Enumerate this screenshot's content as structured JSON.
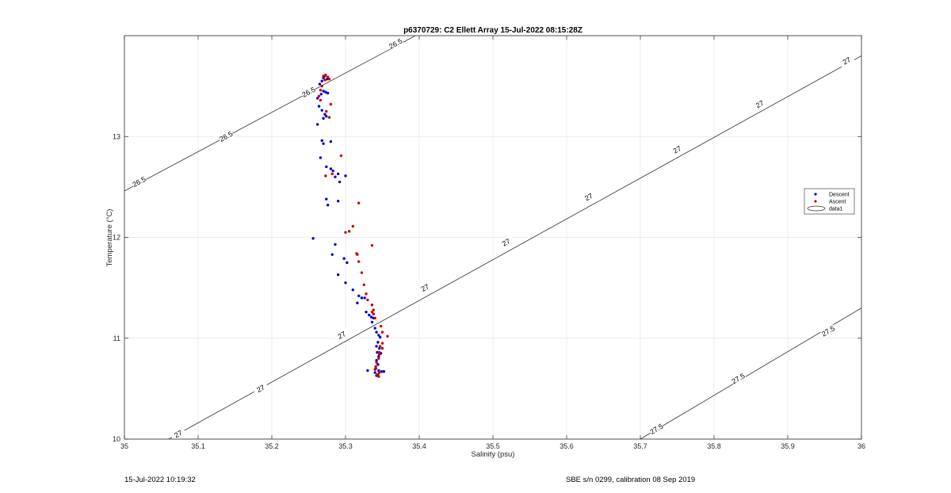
{
  "chart_data": {
    "type": "scatter",
    "title": "p6370729: C2 Ellett Array 15-Jul-2022 08:15:28Z",
    "xlabel": "Salinity (psu)",
    "ylabel": "Temperature (°C)",
    "xlim": [
      35,
      36
    ],
    "ylim": [
      10,
      14
    ],
    "x_ticks": [
      "35",
      "35.1",
      "35.2",
      "35.3",
      "35.4",
      "35.5",
      "35.6",
      "35.7",
      "35.8",
      "35.9",
      "36"
    ],
    "y_ticks": [
      "10",
      "11",
      "12",
      "13"
    ],
    "grid": true,
    "legend_position": "right",
    "legend": [
      "Descent",
      "Ascent",
      "data1"
    ],
    "series": [
      {
        "name": "Descent",
        "color": "#0000cc",
        "points": [
          [
            35.27,
            13.58
          ],
          [
            35.272,
            13.6
          ],
          [
            35.268,
            13.55
          ],
          [
            35.275,
            13.57
          ],
          [
            35.265,
            13.52
          ],
          [
            35.27,
            13.45
          ],
          [
            35.273,
            13.44
          ],
          [
            35.267,
            13.42
          ],
          [
            35.276,
            13.43
          ],
          [
            35.262,
            13.38
          ],
          [
            35.264,
            13.3
          ],
          [
            35.268,
            13.26
          ],
          [
            35.272,
            13.22
          ],
          [
            35.274,
            13.2
          ],
          [
            35.27,
            13.18
          ],
          [
            35.262,
            13.12
          ],
          [
            35.268,
            12.96
          ],
          [
            35.27,
            12.93
          ],
          [
            35.28,
            12.95
          ],
          [
            35.266,
            12.79
          ],
          [
            35.274,
            12.7
          ],
          [
            35.28,
            12.68
          ],
          [
            35.283,
            12.66
          ],
          [
            35.286,
            12.6
          ],
          [
            35.29,
            12.63
          ],
          [
            35.292,
            12.55
          ],
          [
            35.3,
            12.61
          ],
          [
            35.274,
            12.38
          ],
          [
            35.276,
            12.32
          ],
          [
            35.29,
            12.36
          ],
          [
            35.256,
            11.99
          ],
          [
            35.286,
            11.93
          ],
          [
            35.282,
            11.83
          ],
          [
            35.298,
            11.79
          ],
          [
            35.302,
            11.75
          ],
          [
            35.29,
            11.63
          ],
          [
            35.3,
            11.55
          ],
          [
            35.31,
            11.48
          ],
          [
            35.318,
            11.42
          ],
          [
            35.322,
            11.4
          ],
          [
            35.326,
            11.4
          ],
          [
            35.316,
            11.35
          ],
          [
            35.328,
            11.26
          ],
          [
            35.332,
            11.23
          ],
          [
            35.335,
            11.21
          ],
          [
            35.338,
            11.2
          ],
          [
            35.336,
            11.16
          ],
          [
            35.34,
            11.1
          ],
          [
            35.342,
            11.06
          ],
          [
            35.345,
            11.03
          ],
          [
            35.347,
            11.01
          ],
          [
            35.344,
            10.96
          ],
          [
            35.342,
            10.92
          ],
          [
            35.346,
            10.9
          ],
          [
            35.343,
            10.86
          ],
          [
            35.348,
            10.85
          ],
          [
            35.345,
            10.82
          ],
          [
            35.342,
            10.78
          ],
          [
            35.344,
            10.74
          ],
          [
            35.341,
            10.7
          ],
          [
            35.345,
            10.68
          ],
          [
            35.34,
            10.66
          ],
          [
            35.349,
            10.67
          ],
          [
            35.352,
            10.67
          ],
          [
            35.344,
            10.64
          ],
          [
            35.342,
            10.63
          ],
          [
            35.33,
            10.68
          ]
        ]
      },
      {
        "name": "Ascent",
        "color": "#cc0000",
        "points": [
          [
            35.27,
            13.6
          ],
          [
            35.273,
            13.61
          ],
          [
            35.276,
            13.59
          ],
          [
            35.278,
            13.57
          ],
          [
            35.272,
            13.56
          ],
          [
            35.268,
            13.5
          ],
          [
            35.266,
            13.46
          ],
          [
            35.264,
            13.4
          ],
          [
            35.266,
            13.36
          ],
          [
            35.28,
            13.32
          ],
          [
            35.274,
            13.25
          ],
          [
            35.278,
            13.19
          ],
          [
            35.294,
            12.81
          ],
          [
            35.273,
            12.61
          ],
          [
            35.282,
            12.63
          ],
          [
            35.318,
            12.34
          ],
          [
            35.31,
            12.11
          ],
          [
            35.305,
            12.06
          ],
          [
            35.3,
            12.05
          ],
          [
            35.336,
            11.92
          ],
          [
            35.315,
            11.84
          ],
          [
            35.316,
            11.83
          ],
          [
            35.318,
            11.76
          ],
          [
            35.322,
            11.65
          ],
          [
            35.325,
            11.53
          ],
          [
            35.328,
            11.44
          ],
          [
            35.33,
            11.38
          ],
          [
            35.336,
            11.33
          ],
          [
            35.338,
            11.28
          ],
          [
            35.336,
            11.26
          ],
          [
            35.338,
            11.24
          ],
          [
            35.34,
            11.2
          ],
          [
            35.348,
            11.12
          ],
          [
            35.35,
            11.06
          ],
          [
            35.357,
            11.02
          ],
          [
            35.35,
            10.95
          ],
          [
            35.347,
            10.92
          ],
          [
            35.35,
            10.9
          ],
          [
            35.346,
            10.86
          ],
          [
            35.346,
            10.84
          ],
          [
            35.345,
            10.8
          ],
          [
            35.342,
            10.76
          ],
          [
            35.341,
            10.72
          ],
          [
            35.34,
            10.69
          ],
          [
            35.346,
            10.66
          ],
          [
            35.343,
            10.64
          ],
          [
            35.345,
            10.62
          ]
        ]
      }
    ],
    "contours": [
      {
        "level": "26.5",
        "points": [
          [
            35,
            12.46
          ],
          [
            35.4,
            14.02
          ]
        ],
        "labels": [
          [
            35.02,
            12.55
          ],
          [
            35.138,
            13.0
          ],
          [
            35.25,
            13.44
          ],
          [
            35.368,
            13.92
          ]
        ]
      },
      {
        "level": "27",
        "points": [
          [
            35.06,
            10.0
          ],
          [
            36,
            13.8
          ]
        ],
        "labels": [
          [
            35.073,
            10.05
          ],
          [
            35.185,
            10.5
          ],
          [
            35.295,
            11.03
          ],
          [
            35.408,
            11.5
          ],
          [
            35.518,
            11.95
          ],
          [
            35.63,
            12.4
          ],
          [
            35.75,
            12.87
          ],
          [
            35.862,
            13.32
          ],
          [
            35.98,
            13.75
          ]
        ]
      },
      {
        "level": "27.5",
        "points": [
          [
            35.7,
            10.0
          ],
          [
            36,
            11.3
          ]
        ],
        "labels": [
          [
            35.722,
            10.1
          ],
          [
            35.833,
            10.6
          ],
          [
            35.955,
            11.07
          ]
        ]
      }
    ]
  },
  "legend_labels": {
    "descent": "Descent",
    "ascent": "Ascent",
    "data1": "data1"
  },
  "footer": {
    "timestamp": "15-Jul-2022 10:19:32",
    "calibration": "SBE s/n 0299, calibration 08 Sep 2019"
  }
}
